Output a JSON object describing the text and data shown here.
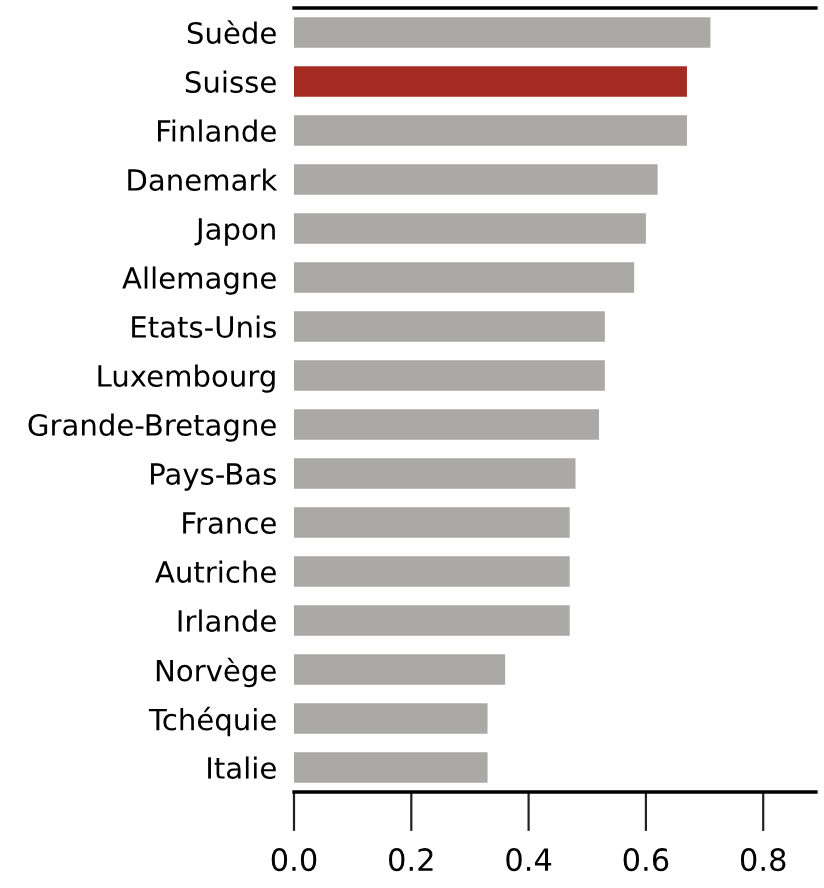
{
  "chart_data": {
    "type": "bar",
    "orientation": "horizontal",
    "categories": [
      "Suède",
      "Suisse",
      "Finlande",
      "Danemark",
      "Japon",
      "Allemagne",
      "Etats-Unis",
      "Luxembourg",
      "Grande-Bretagne",
      "Pays-Bas",
      "France",
      "Autriche",
      "Irlande",
      "Norvège",
      "Tchéquie",
      "Italie"
    ],
    "values": [
      0.71,
      0.67,
      0.67,
      0.62,
      0.6,
      0.58,
      0.53,
      0.53,
      0.52,
      0.48,
      0.47,
      0.47,
      0.47,
      0.36,
      0.33,
      0.33
    ],
    "colors": [
      "#aaa9a5",
      "#a52a22",
      "#aaa9a5",
      "#aaa9a5",
      "#aaa9a5",
      "#aaa9a5",
      "#aaa9a5",
      "#aaa9a5",
      "#aaa9a5",
      "#aaa9a5",
      "#aaa9a5",
      "#aaa9a5",
      "#aaa9a5",
      "#aaa9a5",
      "#aaa9a5",
      "#aaa9a5"
    ],
    "xlim": [
      0,
      0.89
    ],
    "xticks": [
      {
        "value": 0,
        "label": "0.0"
      },
      {
        "value": 0.2,
        "label": "0.2"
      },
      {
        "value": 0.4,
        "label": "0.4"
      },
      {
        "value": 0.6,
        "label": "0.6"
      },
      {
        "value": 0.8,
        "label": "0.8"
      }
    ],
    "grid": false,
    "legend": false
  }
}
